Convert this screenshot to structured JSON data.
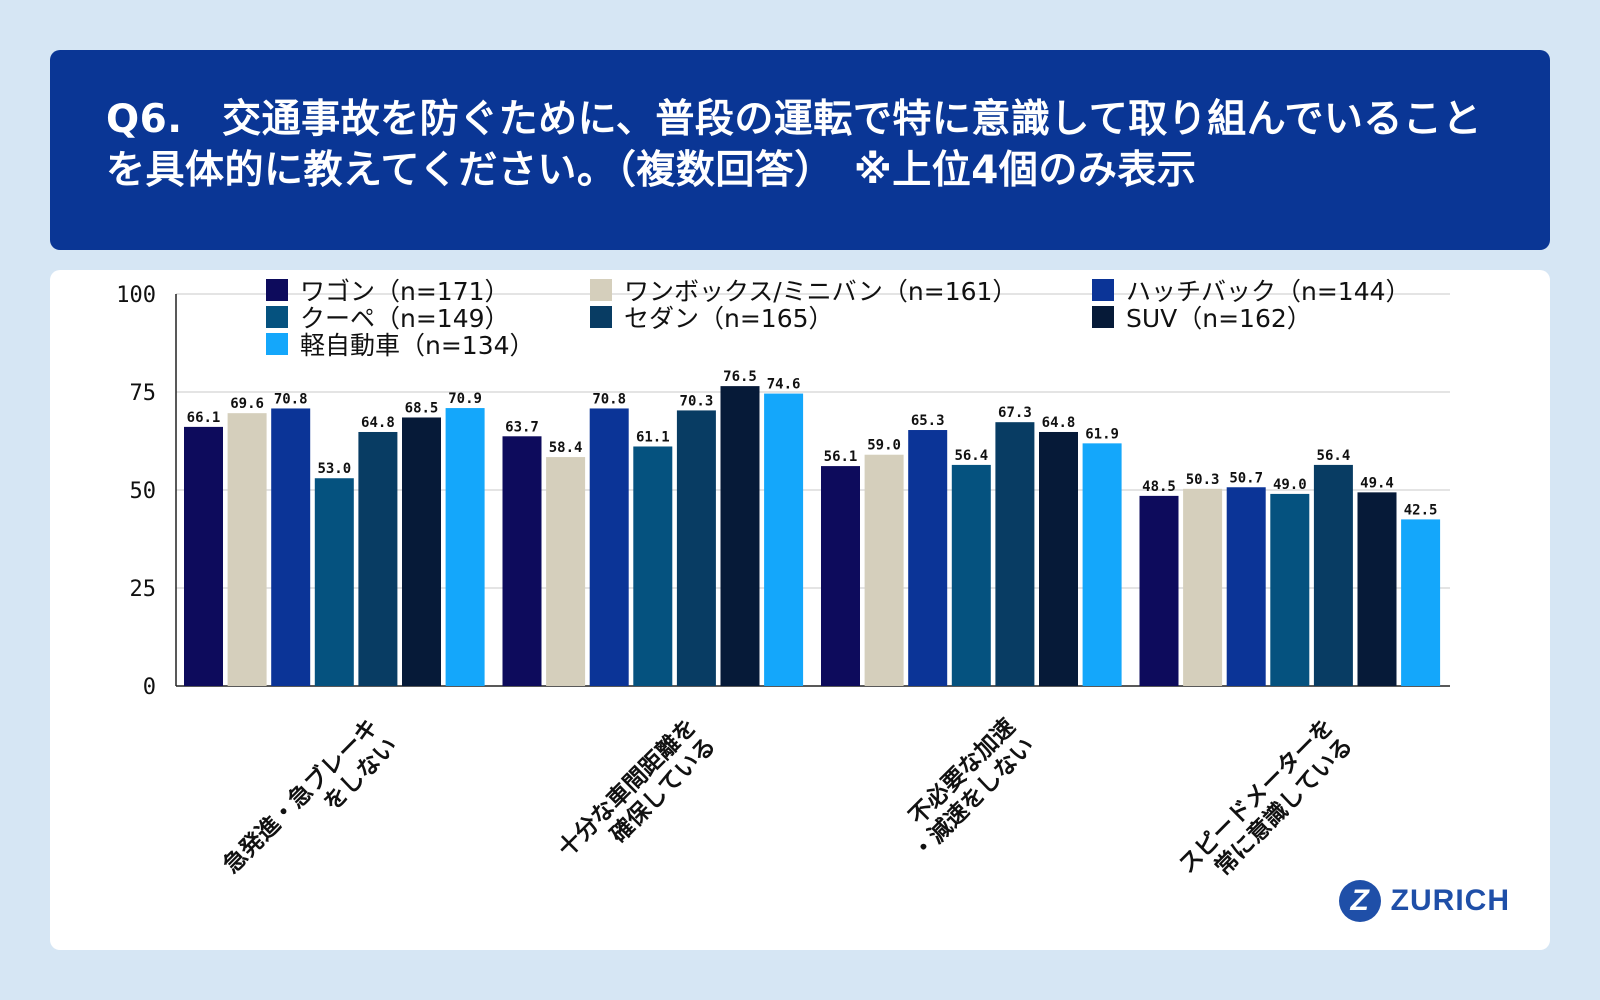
{
  "header": {
    "line1": "Q6.　交通事故を防ぐために、普段の運転で特に意識して取り組んでいること",
    "line2": "を具体的に教えてください。（複数回答）　※上位4個のみ表示"
  },
  "logo": {
    "text": "ZURICH",
    "mark": "Z"
  },
  "colors": {
    "background": "#d6e6f4",
    "header": "#0a3695",
    "logo": "#1f4fa8"
  },
  "chart_data": {
    "type": "bar",
    "title": "",
    "xlabel": "",
    "ylabel": "",
    "ylim": [
      0,
      100
    ],
    "yticks": [
      0,
      25,
      50,
      75,
      100
    ],
    "grid": true,
    "legend_position": "top",
    "categories": [
      [
        "急発進・急ブレーキ",
        "をしない"
      ],
      [
        "十分な車間距離を",
        "確保している"
      ],
      [
        "不必要な加速",
        "・減速をしない"
      ],
      [
        "スピードメーターを",
        "常に意識している"
      ]
    ],
    "series": [
      {
        "name": "ワゴン（n=171）",
        "color": "#0d0b5c",
        "values": [
          66.1,
          63.7,
          56.1,
          48.5
        ]
      },
      {
        "name": "ワンボックス/ミニバン（n=161）",
        "color": "#d5cfbc",
        "values": [
          69.6,
          58.4,
          59.0,
          50.3
        ]
      },
      {
        "name": "ハッチバック（n=144）",
        "color": "#0b3497",
        "values": [
          70.8,
          70.8,
          65.3,
          50.7
        ]
      },
      {
        "name": "クーペ（n=149）",
        "color": "#05527f",
        "values": [
          53.0,
          61.1,
          56.4,
          49.0
        ]
      },
      {
        "name": "セダン（n=165）",
        "color": "#083c63",
        "values": [
          64.8,
          70.3,
          67.3,
          56.4
        ]
      },
      {
        "name": "SUV（n=162）",
        "color": "#061a38",
        "values": [
          68.5,
          76.5,
          64.8,
          49.4
        ]
      },
      {
        "name": "軽自動車（n=134）",
        "color": "#14a7fb",
        "values": [
          70.9,
          74.6,
          61.9,
          42.5
        ]
      }
    ]
  }
}
